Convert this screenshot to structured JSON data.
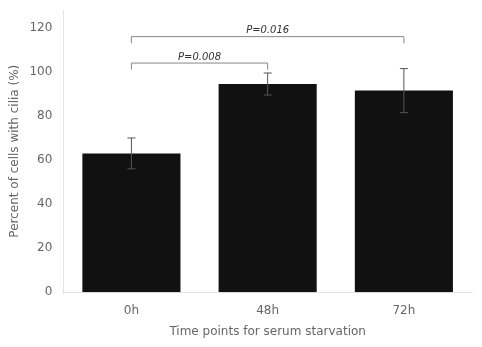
{
  "chart_data": {
    "type": "bar",
    "categories": [
      "0h",
      "48h",
      "72h"
    ],
    "values": [
      63.0,
      94.5,
      91.5
    ],
    "errors": [
      7.0,
      5.0,
      10.0
    ],
    "color": "#111111",
    "xlabel": "Time points for serum starvation",
    "ylabel": "Percent of cells with cilia (%)",
    "ylim": [
      0,
      128
    ],
    "yticks": [
      0,
      20,
      40,
      60,
      80,
      100,
      120
    ],
    "grid": false,
    "significance": [
      {
        "from": "0h",
        "to": "48h",
        "y": 104,
        "drop": 3,
        "label": "P=0.008",
        "label_y": 104.5
      },
      {
        "from": "0h",
        "to": "72h",
        "y": 116,
        "drop": 3,
        "label": "P=0.016",
        "label_y": 116.5
      }
    ]
  }
}
